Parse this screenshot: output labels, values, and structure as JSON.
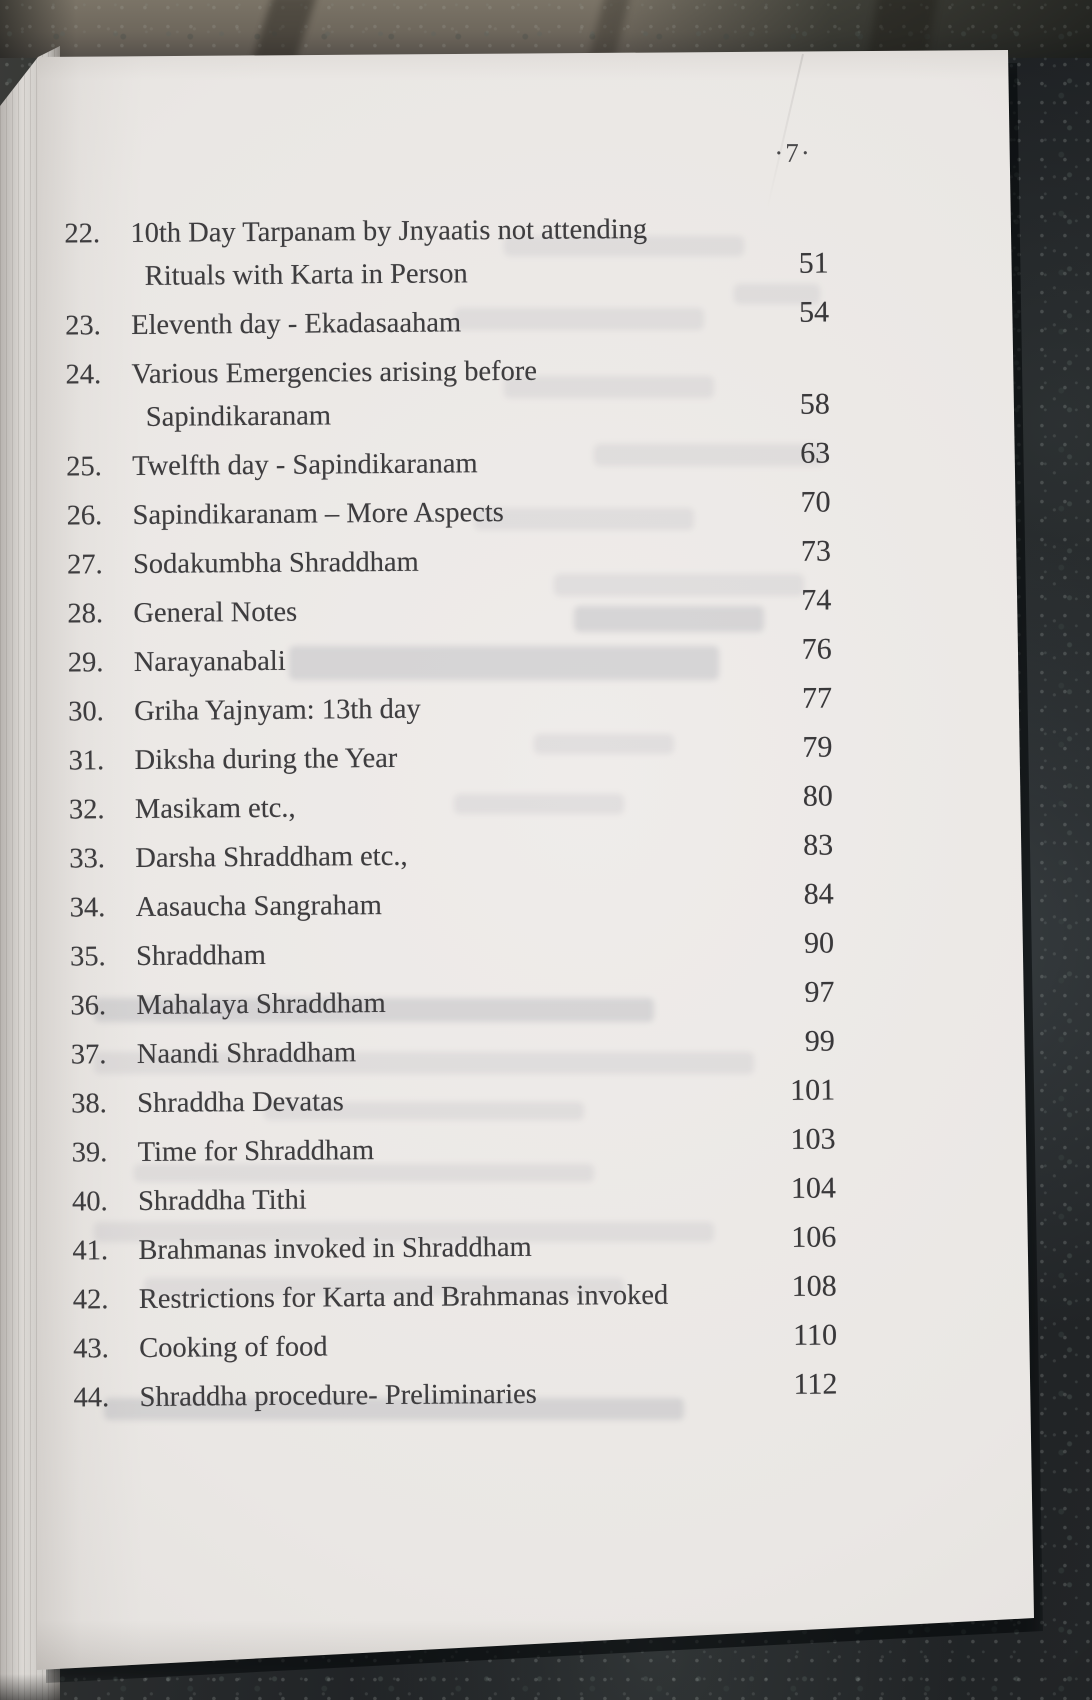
{
  "folio": {
    "page_number": "·7·"
  },
  "toc": {
    "entries": [
      {
        "num": "22.",
        "lines": [
          "10th Day Tarpanam by Jnyaatis not attending",
          "Rituals with Karta in Person"
        ],
        "page": "51"
      },
      {
        "num": "23.",
        "lines": [
          "Eleventh day - Ekadasaaham"
        ],
        "page": "54"
      },
      {
        "num": "24.",
        "lines": [
          "Various Emergencies arising before",
          "Sapindikaranam"
        ],
        "page": "58"
      },
      {
        "num": "25.",
        "lines": [
          "Twelfth day - Sapindikaranam"
        ],
        "page": "63"
      },
      {
        "num": "26.",
        "lines": [
          "Sapindikaranam – More Aspects"
        ],
        "page": "70"
      },
      {
        "num": "27.",
        "lines": [
          "Sodakumbha Shraddham"
        ],
        "page": "73"
      },
      {
        "num": "28.",
        "lines": [
          "General Notes"
        ],
        "page": "74"
      },
      {
        "num": "29.",
        "lines": [
          "Narayanabali"
        ],
        "page": "76"
      },
      {
        "num": "30.",
        "lines": [
          "Griha Yajnyam: 13th day"
        ],
        "page": "77"
      },
      {
        "num": "31.",
        "lines": [
          "Diksha during the Year"
        ],
        "page": "79"
      },
      {
        "num": "32.",
        "lines": [
          "Masikam etc.,"
        ],
        "page": "80"
      },
      {
        "num": "33.",
        "lines": [
          "Darsha Shraddham etc.,"
        ],
        "page": "83"
      },
      {
        "num": "34.",
        "lines": [
          "Aasaucha Sangraham"
        ],
        "page": "84"
      },
      {
        "num": "35.",
        "lines": [
          "Shraddham"
        ],
        "page": "90"
      },
      {
        "num": "36.",
        "lines": [
          "Mahalaya Shraddham"
        ],
        "page": "97"
      },
      {
        "num": "37.",
        "lines": [
          "Naandi Shraddham"
        ],
        "page": "99"
      },
      {
        "num": "38.",
        "lines": [
          "Shraddha Devatas"
        ],
        "page": "101"
      },
      {
        "num": "39.",
        "lines": [
          "Time for Shraddham"
        ],
        "page": "103"
      },
      {
        "num": "40.",
        "lines": [
          "Shraddha Tithi"
        ],
        "page": "104"
      },
      {
        "num": "41.",
        "lines": [
          "Brahmanas invoked in Shraddham"
        ],
        "page": "106"
      },
      {
        "num": "42.",
        "lines": [
          "Restrictions for Karta and Brahmanas invoked"
        ],
        "page": "108"
      },
      {
        "num": "43.",
        "lines": [
          "Cooking of food"
        ],
        "page": "110"
      },
      {
        "num": "44.",
        "lines": [
          "Shraddha procedure- Preliminaries"
        ],
        "page": "112"
      }
    ]
  },
  "colors": {
    "paper": "#eae7e4",
    "ink": "#3e3d3f",
    "granite_dark": "#1e2124",
    "granite_top_band": "#6e675c",
    "page_stack_edge": "#d5d2cf"
  }
}
